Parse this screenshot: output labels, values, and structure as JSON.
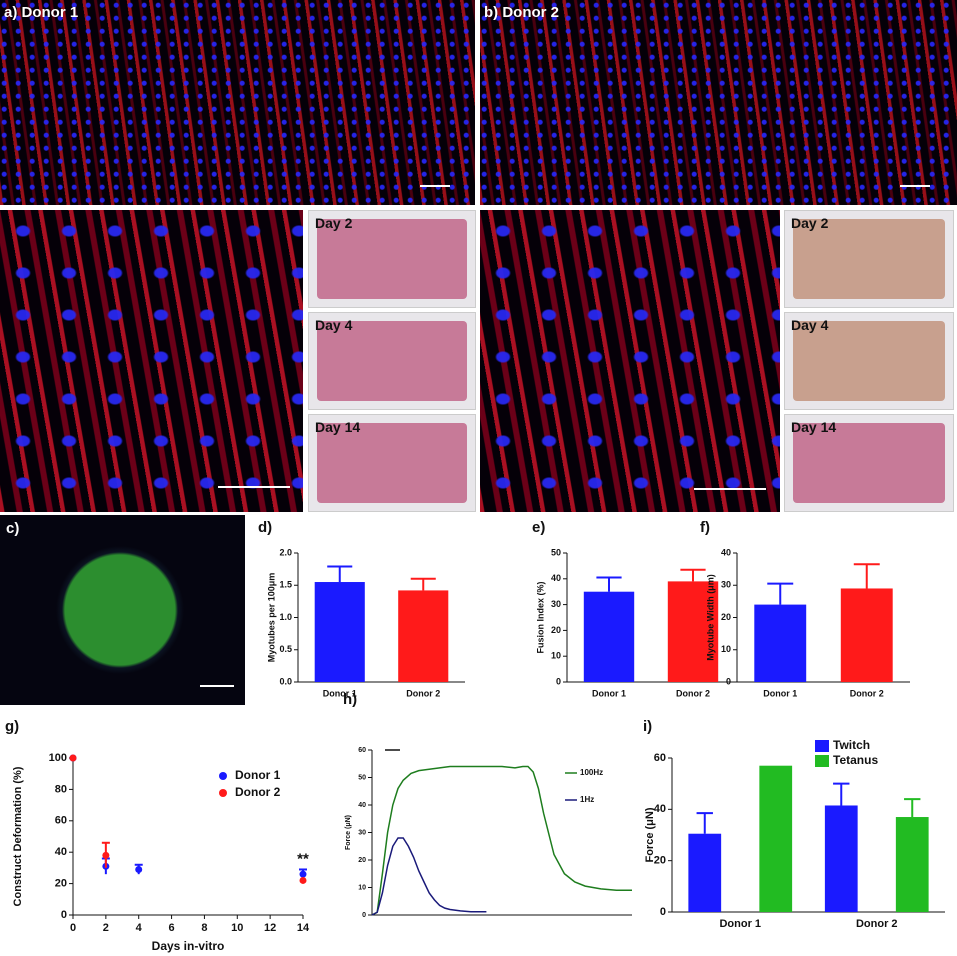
{
  "image_panels": {
    "a": {
      "label": "a)",
      "title": "Donor 1",
      "days": [
        "Day 2",
        "Day 4",
        "Day 14"
      ]
    },
    "b": {
      "label": "b)",
      "title": "Donor 2",
      "days": [
        "Day 2",
        "Day 4",
        "Day 14"
      ]
    },
    "c": {
      "label": "c)"
    }
  },
  "chart_data": [
    {
      "type": "bar",
      "panel_label": "d)",
      "ylabel": "Myotubes per 100μm",
      "categories": [
        "Donor 1",
        "Donor 2"
      ],
      "values": [
        1.55,
        1.42
      ],
      "errors": [
        0.24,
        0.18
      ],
      "colors": [
        "#1a1aff",
        "#ff1a1a"
      ],
      "ylim": [
        0,
        2
      ],
      "yticks": [
        {
          "value": 0,
          "label": "0.0"
        },
        0.5,
        {
          "value": 1,
          "label": "1.0"
        },
        1.5,
        {
          "value": 2,
          "label": "2.0"
        }
      ]
    },
    {
      "type": "bar",
      "panel_label": "e)",
      "ylabel": "Fusion Index (%)",
      "categories": [
        "Donor 1",
        "Donor 2"
      ],
      "values": [
        35,
        39
      ],
      "errors": [
        5.5,
        4.5
      ],
      "colors": [
        "#1a1aff",
        "#ff1a1a"
      ],
      "ylim": [
        0,
        50
      ],
      "yticks": [
        0,
        10,
        20,
        30,
        40,
        50
      ]
    },
    {
      "type": "bar",
      "panel_label": "f)",
      "ylabel": "Myotube Width (μm)",
      "categories": [
        "Donor 1",
        "Donor 2"
      ],
      "values": [
        24,
        29
      ],
      "errors": [
        6.5,
        7.5
      ],
      "colors": [
        "#1a1aff",
        "#ff1a1a"
      ],
      "ylim": [
        0,
        40
      ],
      "yticks": [
        0,
        10,
        20,
        30,
        40
      ]
    },
    {
      "type": "scatter",
      "panel_label": "g)",
      "xlabel": "Days in-vitro",
      "ylabel": "Construct Deformation (%)",
      "annotation": "**",
      "series": [
        {
          "name": "Donor 1",
          "color": "#1a1aff",
          "x": [
            0,
            2,
            4,
            14
          ],
          "values": [
            100,
            31,
            29,
            26
          ],
          "errors": [
            null,
            5,
            3,
            3
          ]
        },
        {
          "name": "Donor 2",
          "color": "#ff1a1a",
          "x": [
            0,
            2,
            14
          ],
          "values": [
            100,
            38,
            22
          ],
          "errors": [
            null,
            8,
            null
          ]
        }
      ],
      "xlim": [
        0,
        14
      ],
      "xticks": [
        0,
        2,
        4,
        6,
        8,
        10,
        12,
        14
      ],
      "ylim": [
        0,
        100
      ],
      "yticks": [
        0,
        20,
        40,
        60,
        80,
        100
      ]
    },
    {
      "type": "line",
      "panel_label": "h)",
      "ylabel": "Force (μN)",
      "series": [
        {
          "name": "100Hz",
          "color": "#1e7d1e",
          "x": [
            0,
            2,
            4,
            6,
            8,
            10,
            12,
            15,
            18,
            22,
            26,
            30,
            40,
            50,
            55,
            58,
            60,
            62,
            64,
            66,
            70,
            74,
            78,
            82,
            88,
            94,
            100
          ],
          "values": [
            0,
            1,
            15,
            30,
            40,
            46,
            49,
            51.5,
            52.5,
            53,
            53.5,
            54,
            54,
            54,
            53.5,
            54,
            54,
            52,
            46,
            37,
            22,
            15,
            12,
            10.5,
            9.5,
            9,
            9
          ]
        },
        {
          "name": "1Hz",
          "color": "#1a1a7a",
          "x": [
            0,
            2,
            4,
            6,
            8,
            10,
            12,
            14,
            16,
            18,
            20,
            22,
            24,
            26,
            28,
            30,
            34,
            38,
            42,
            44
          ],
          "values": [
            0,
            1,
            8,
            18,
            25,
            28,
            28,
            25,
            21,
            16,
            12,
            8,
            5.5,
            3.5,
            2.5,
            2,
            1.5,
            1.2,
            1.2,
            1.2
          ]
        }
      ],
      "xlim": [
        0,
        100
      ],
      "ylim": [
        0,
        60
      ],
      "yticks": [
        0,
        10,
        20,
        30,
        40,
        50,
        60
      ]
    },
    {
      "type": "bar",
      "panel_label": "i)",
      "ylabel": "Force (μN)",
      "categories": [
        "Donor 1",
        "Donor 2"
      ],
      "series": [
        {
          "name": "Twitch",
          "color": "#1a1aff",
          "values": [
            30.5,
            41.5
          ],
          "errors": [
            8,
            8.5
          ]
        },
        {
          "name": "Tetanus",
          "color": "#22bb22",
          "values": [
            57,
            37
          ],
          "errors": [
            null,
            7
          ]
        }
      ],
      "ylim": [
        0,
        60
      ],
      "yticks": [
        0,
        20,
        40,
        60
      ]
    }
  ]
}
